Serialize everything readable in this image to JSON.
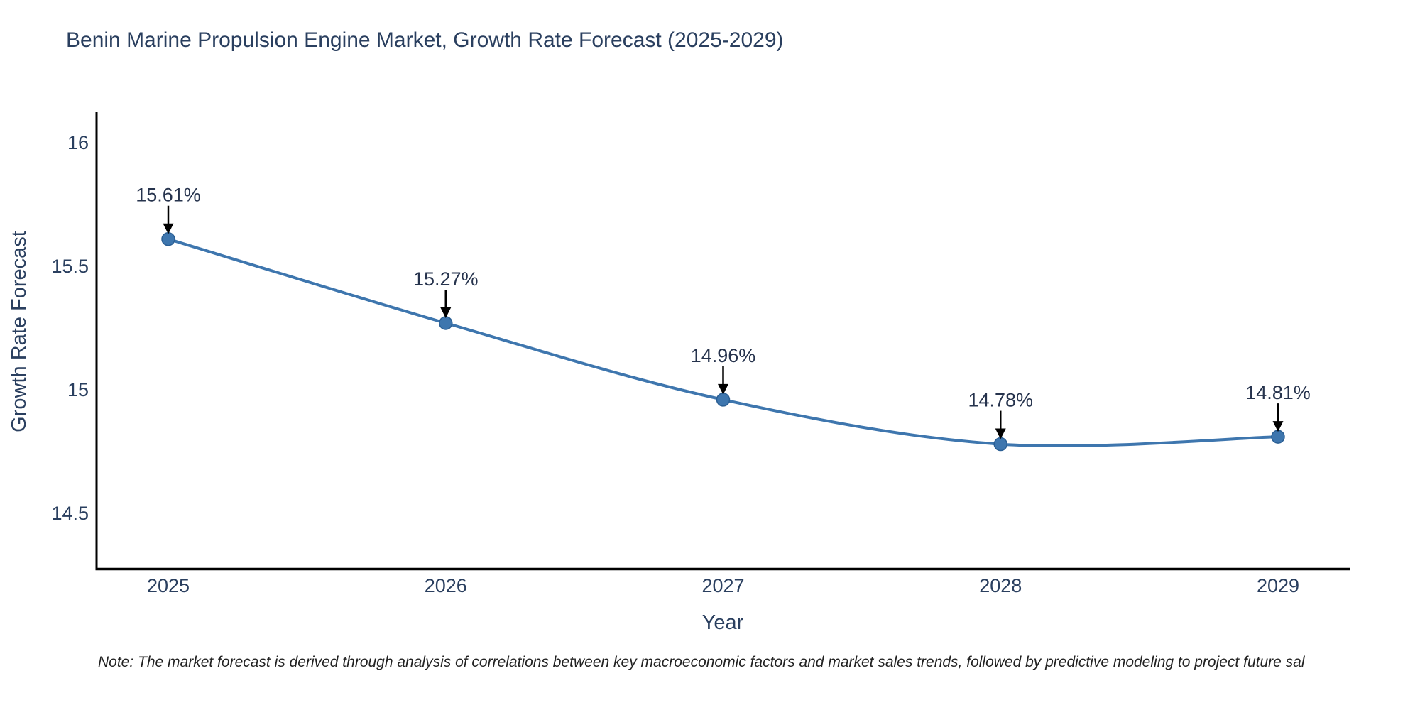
{
  "title": "Benin Marine Propulsion Engine Market, Growth Rate Forecast (2025-2029)",
  "note": "Note: The market forecast is derived through analysis of correlations between key macroeconomic factors and market sales trends, followed by predictive modeling to project future sal",
  "chart_data": {
    "type": "line",
    "title": "Benin Marine Propulsion Engine Market, Growth Rate Forecast (2025-2029)",
    "xlabel": "Year",
    "ylabel": "Growth Rate Forecast",
    "x": [
      2025,
      2026,
      2027,
      2028,
      2029
    ],
    "values": [
      15.61,
      15.27,
      14.96,
      14.78,
      14.81
    ],
    "point_labels": [
      "15.61%",
      "15.27%",
      "14.96%",
      "14.78%",
      "14.81%"
    ],
    "x_ticks": [
      "2025",
      "2026",
      "2027",
      "2028",
      "2029"
    ],
    "y_ticks": [
      16,
      15.5,
      15,
      14.5
    ],
    "xlim": [
      2024.74,
      2029.26
    ],
    "ylim": [
      14.28,
      16.12
    ],
    "grid": false,
    "legend": "none",
    "line_shape": "spline",
    "marker": "circle",
    "annotation_style": "label-above-with-down-arrow",
    "colors": {
      "line": "#3E76AE",
      "marker": "#3E76AE",
      "marker_edge": "#2B5F94",
      "axis": "#000000",
      "text": "#2a3f5f",
      "annotation_text": "#26334d",
      "annotation_arrow": "#000000",
      "note_text": "#222222",
      "background": "#ffffff"
    }
  }
}
